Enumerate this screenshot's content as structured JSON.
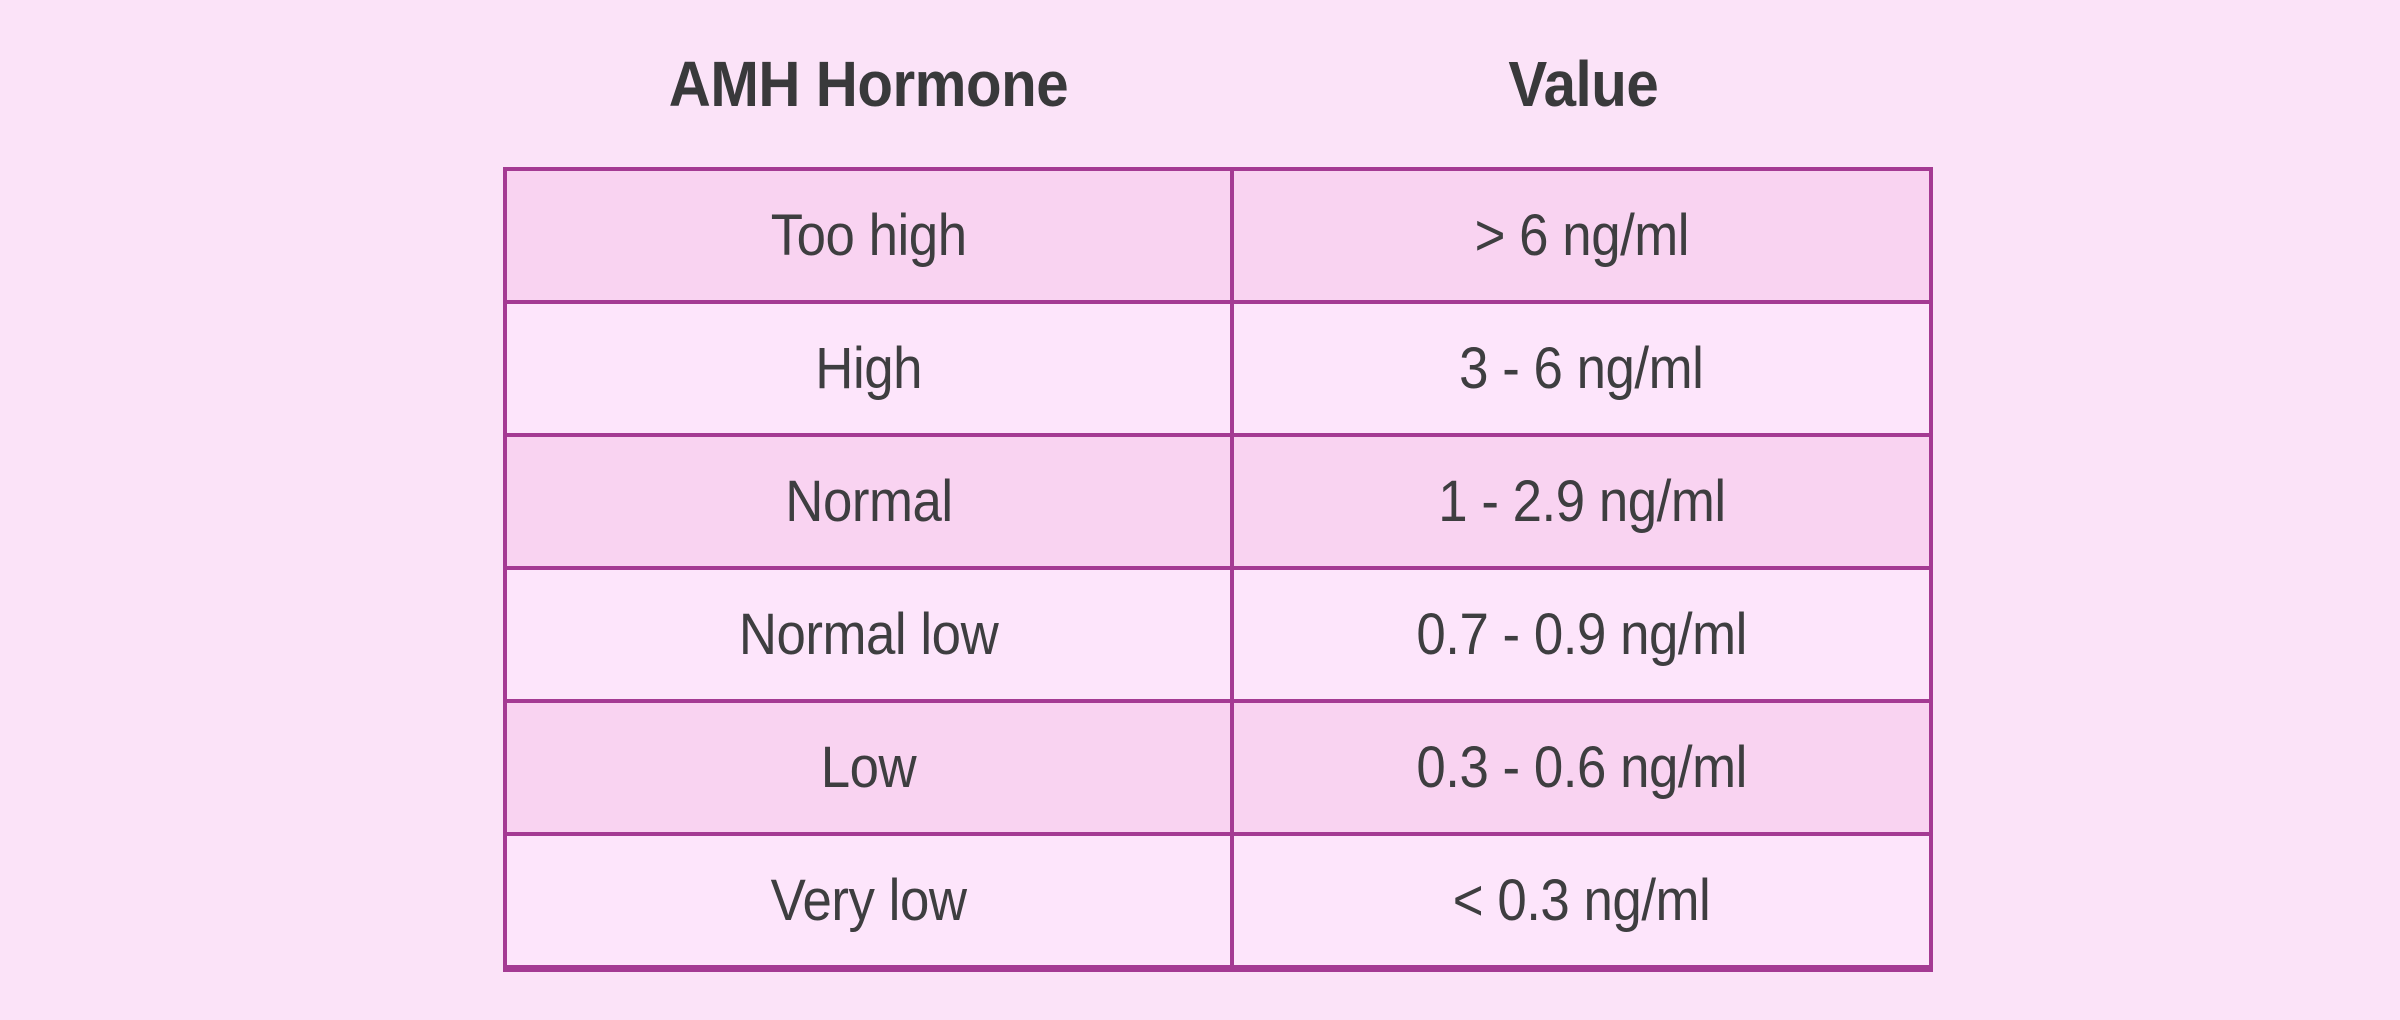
{
  "page": {
    "background_color": "#fbe3f8",
    "border_color": "#a43a93",
    "row_dark_color": "#f9d3f1",
    "row_light_color": "#fde5fb",
    "text_color": "#3e3e40"
  },
  "table": {
    "headers": [
      {
        "label": "AMH Hormone"
      },
      {
        "label": "Value"
      }
    ],
    "rows": [
      {
        "level": "Too high",
        "value": "> 6 ng/ml"
      },
      {
        "level": "High",
        "value": "3 - 6 ng/ml"
      },
      {
        "level": "Normal",
        "value": "1 - 2.9 ng/ml"
      },
      {
        "level": "Normal low",
        "value": "0.7 - 0.9 ng/ml"
      },
      {
        "level": "Low",
        "value": "0.3 - 0.6 ng/ml"
      },
      {
        "level": "Very low",
        "value": "< 0.3 ng/ml"
      }
    ]
  },
  "chart_data": {
    "type": "table",
    "title": "AMH Hormone levels",
    "columns": [
      "AMH Hormone",
      "Value"
    ],
    "rows": [
      [
        "Too high",
        "> 6 ng/ml"
      ],
      [
        "High",
        "3 - 6 ng/ml"
      ],
      [
        "Normal",
        "1 - 2.9 ng/ml"
      ],
      [
        "Normal low",
        "0.7 - 0.9 ng/ml"
      ],
      [
        "Low",
        "0.3 - 0.6 ng/ml"
      ],
      [
        "Very low",
        "< 0.3 ng/ml"
      ]
    ],
    "units": "ng/ml",
    "layout": {
      "header_outside_table": true,
      "alternating_row_shading": true
    }
  }
}
